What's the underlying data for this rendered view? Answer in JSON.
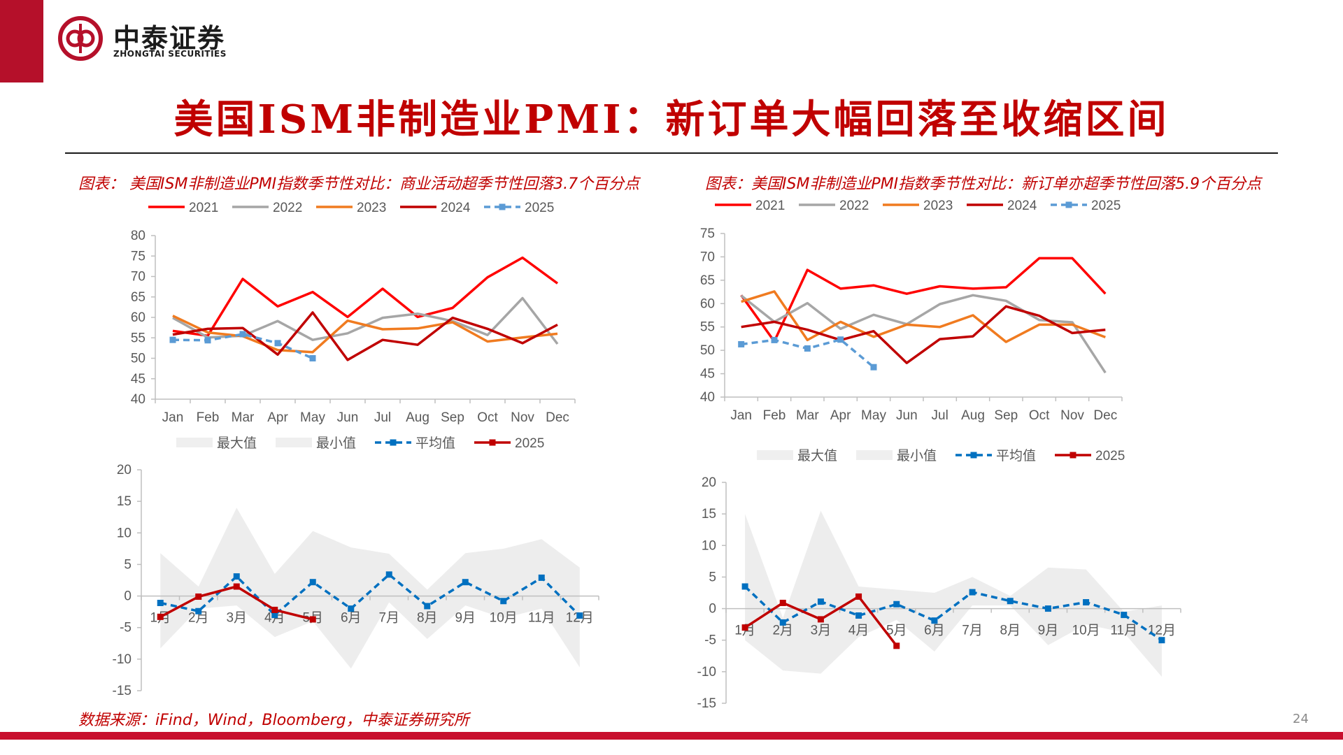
{
  "header": {
    "logo_cn": "中泰证券",
    "logo_en": "ZHONGTAI SECURITIES",
    "brand_color": "#b5102a"
  },
  "title": "美国ISM非制造业PMI：新订单大幅回落至收缩区间",
  "captions": {
    "left": "图表：  美国ISM非制造业PMI指数季节性对比：商业活动超季节性回落3.7个百分点",
    "right": "图表：美国ISM非制造业PMI指数季节性对比：新订单亦超季节性回落5.9个百分点"
  },
  "footer": {
    "source": "数据来源：iFind，Wind，Bloomberg，中泰证券研究所",
    "page_number": "24"
  },
  "chart_data": [
    {
      "type": "line",
      "categories": [
        "Jan",
        "Feb",
        "Mar",
        "Apr",
        "May",
        "Jun",
        "Jul",
        "Aug",
        "Sep",
        "Oct",
        "Nov",
        "Dec"
      ],
      "ylim": [
        40,
        80
      ],
      "yticks": [
        40,
        45,
        50,
        55,
        60,
        65,
        70,
        75,
        80
      ],
      "legend": "top",
      "series": [
        {
          "name": "2021",
          "color": "#ff0000",
          "dash": false,
          "values": [
            56.7,
            55.5,
            69.4,
            62.7,
            66.2,
            60.1,
            67.0,
            60.1,
            62.3,
            69.8,
            74.6,
            68.3
          ]
        },
        {
          "name": "2022",
          "color": "#a6a6a6",
          "dash": false,
          "values": [
            59.9,
            55.1,
            55.5,
            59.1,
            54.5,
            56.1,
            59.9,
            60.9,
            59.1,
            55.7,
            64.7,
            53.5
          ]
        },
        {
          "name": "2023",
          "color": "#f07b20",
          "dash": false,
          "values": [
            60.4,
            56.3,
            55.4,
            52.0,
            51.5,
            59.2,
            57.1,
            57.3,
            58.8,
            54.1,
            55.1,
            56.0
          ]
        },
        {
          "name": "2024",
          "color": "#c00000",
          "dash": false,
          "values": [
            55.8,
            57.2,
            57.4,
            50.9,
            61.2,
            49.6,
            54.5,
            53.3,
            59.9,
            57.2,
            53.7,
            58.2
          ]
        },
        {
          "name": "2025",
          "color": "#5b9bd5",
          "dash": true,
          "values": [
            54.5,
            54.4,
            55.9,
            53.7,
            50.0,
            null,
            null,
            null,
            null,
            null,
            null,
            null
          ]
        }
      ]
    },
    {
      "type": "line",
      "categories": [
        "Jan",
        "Feb",
        "Mar",
        "Apr",
        "May",
        "Jun",
        "Jul",
        "Aug",
        "Sep",
        "Oct",
        "Nov",
        "Dec"
      ],
      "ylim": [
        40,
        75
      ],
      "yticks": [
        40,
        45,
        50,
        55,
        60,
        65,
        70,
        75
      ],
      "legend": "top",
      "series": [
        {
          "name": "2021",
          "color": "#ff0000",
          "dash": false,
          "values": [
            61.8,
            51.9,
            67.2,
            63.2,
            63.9,
            62.1,
            63.7,
            63.2,
            63.5,
            69.7,
            69.7,
            62.1
          ]
        },
        {
          "name": "2022",
          "color": "#a6a6a6",
          "dash": false,
          "values": [
            61.7,
            56.1,
            60.1,
            54.6,
            57.6,
            55.6,
            59.9,
            61.8,
            60.6,
            56.5,
            56.0,
            45.2
          ]
        },
        {
          "name": "2023",
          "color": "#f07b20",
          "dash": false,
          "values": [
            60.4,
            62.6,
            52.2,
            56.1,
            52.9,
            55.5,
            55.0,
            57.5,
            51.8,
            55.5,
            55.5,
            52.8
          ]
        },
        {
          "name": "2024",
          "color": "#c00000",
          "dash": false,
          "values": [
            55.0,
            56.1,
            54.4,
            52.2,
            54.1,
            47.3,
            52.4,
            53.0,
            59.4,
            57.4,
            53.7,
            54.4
          ]
        },
        {
          "name": "2025",
          "color": "#5b9bd5",
          "dash": true,
          "values": [
            51.3,
            52.2,
            50.4,
            52.3,
            46.4,
            null,
            null,
            null,
            null,
            null,
            null,
            null
          ]
        }
      ]
    },
    {
      "type": "area",
      "categories": [
        "1月",
        "2月",
        "3月",
        "4月",
        "5月",
        "6月",
        "7月",
        "8月",
        "9月",
        "10月",
        "11月",
        "12月"
      ],
      "ylim": [
        -15,
        20
      ],
      "yticks": [
        -15,
        -10,
        -5,
        0,
        5,
        10,
        15,
        20
      ],
      "legend": "top",
      "band_max": [
        6.8,
        1.5,
        14.0,
        3.5,
        10.3,
        7.7,
        6.7,
        1.0,
        6.8,
        7.5,
        9.0,
        4.5
      ],
      "band_min": [
        -8.3,
        -2.0,
        -1.5,
        -6.5,
        -4.0,
        -11.5,
        -1.0,
        -6.8,
        -1.5,
        -3.5,
        -2.0,
        -11.3
      ],
      "series": [
        {
          "name": "最大值",
          "color": "#f2f2f2",
          "kind": "band-max"
        },
        {
          "name": "最小值",
          "color": "#f2f2f2",
          "kind": "band-min"
        },
        {
          "name": "平均值",
          "color": "#0070c0",
          "dash": true,
          "values": [
            -1.1,
            -2.4,
            3.1,
            -3.0,
            2.2,
            -2.0,
            3.4,
            -1.6,
            2.2,
            -0.8,
            2.9,
            -3.1
          ]
        },
        {
          "name": "2025",
          "color": "#c00000",
          "dash": false,
          "values": [
            -3.3,
            -0.1,
            1.5,
            -2.2,
            -3.7,
            null,
            null,
            null,
            null,
            null,
            null,
            null
          ]
        }
      ]
    },
    {
      "type": "area",
      "categories": [
        "1月",
        "2月",
        "3月",
        "4月",
        "5月",
        "6月",
        "7月",
        "8月",
        "9月",
        "10月",
        "11月",
        "12月"
      ],
      "ylim": [
        -15,
        20
      ],
      "yticks": [
        -15,
        -10,
        -5,
        0,
        5,
        10,
        15,
        20
      ],
      "legend": "top",
      "band_max": [
        15.0,
        -1.5,
        15.5,
        3.5,
        3.0,
        2.5,
        5.0,
        2.0,
        6.5,
        6.2,
        -0.5,
        0.5
      ],
      "band_min": [
        -5.0,
        -9.8,
        -10.3,
        -4.5,
        -1.8,
        -6.8,
        0.5,
        0.5,
        -5.8,
        -2.5,
        -3.8,
        -10.8
      ],
      "series": [
        {
          "name": "最大值",
          "color": "#f2f2f2",
          "kind": "band-max"
        },
        {
          "name": "最小值",
          "color": "#f2f2f2",
          "kind": "band-min"
        },
        {
          "name": "平均值",
          "color": "#0070c0",
          "dash": true,
          "values": [
            3.5,
            -2.2,
            1.1,
            -1.1,
            0.7,
            -1.9,
            2.6,
            1.2,
            0.0,
            1.0,
            -1.0,
            -5.0
          ]
        },
        {
          "name": "2025",
          "color": "#c00000",
          "dash": false,
          "values": [
            -3.0,
            0.9,
            -1.7,
            1.9,
            -5.9,
            null,
            null,
            null,
            null,
            null,
            null,
            null
          ]
        }
      ]
    }
  ]
}
